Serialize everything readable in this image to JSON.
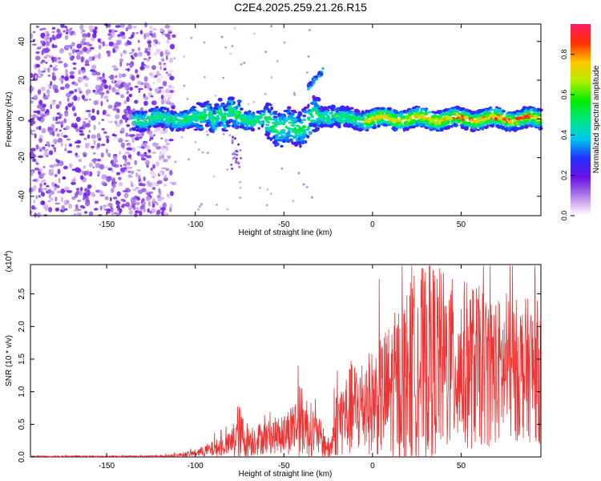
{
  "title": "C2E4.2025.259.21.26.R15",
  "chart_data": [
    {
      "type": "heatmap",
      "xlabel": "Height of straight line (km)",
      "ylabel": "Frequency (Hz)",
      "xlim": [
        -193,
        95
      ],
      "ylim": [
        -50,
        49
      ],
      "xticks": [
        -150,
        -100,
        -50,
        0,
        50
      ],
      "yticks": [
        -40,
        -20,
        0,
        20,
        40
      ],
      "colorbar": {
        "label": "Normalized spectral amplitude",
        "range": [
          0.0,
          0.95
        ],
        "ticks": [
          0.0,
          0.2,
          0.4,
          0.6,
          0.8
        ],
        "tick_labels": [
          "0.0",
          "0.2",
          "0.4",
          "0.6",
          "0.8"
        ]
      },
      "features": {
        "noise_region_x": [
          -193,
          -112
        ],
        "main_band_center_hz": 0,
        "main_band_x": [
          -135,
          95
        ],
        "secondary_blob": {
          "x": [
            -37,
            -28
          ],
          "y": [
            16,
            25
          ]
        }
      }
    },
    {
      "type": "line",
      "xlabel": "Height of straight line (km)",
      "ylabel": "SNR (10 * v/v)",
      "multiplier": "(x10",
      "multiplier_exp": "4",
      "multiplier_close": ")",
      "xlim": [
        -193,
        95
      ],
      "ylim": [
        0,
        2.95
      ],
      "xticks": [
        -150,
        -100,
        -50,
        0,
        50
      ],
      "yticks": [
        0.0,
        0.5,
        1.0,
        1.5,
        2.0,
        2.5
      ],
      "ytick_labels": [
        "0.0",
        "0.5",
        "1.0",
        "1.5",
        "2.0",
        "2.5"
      ],
      "series_color": "#ee3333",
      "envelope": {
        "x": [
          -193,
          -130,
          -112,
          -100,
          -90,
          -80,
          -76,
          -70,
          -60,
          -50,
          -40,
          -30,
          -24,
          -20,
          -10,
          0,
          10,
          25,
          35,
          45,
          55,
          65,
          75,
          85,
          95
        ],
        "mean": [
          0.01,
          0.01,
          0.02,
          0.06,
          0.12,
          0.2,
          0.35,
          0.25,
          0.3,
          0.35,
          0.55,
          0.3,
          0.1,
          0.55,
          0.75,
          0.85,
          1.0,
          1.4,
          1.5,
          1.4,
          1.4,
          1.35,
          1.3,
          1.35,
          1.3
        ],
        "amp": [
          0.01,
          0.01,
          0.02,
          0.05,
          0.12,
          0.18,
          0.5,
          0.25,
          0.25,
          0.3,
          0.55,
          0.3,
          0.15,
          0.55,
          0.75,
          0.8,
          1.1,
          1.5,
          1.5,
          1.35,
          1.3,
          1.2,
          1.1,
          1.1,
          1.1
        ]
      }
    }
  ]
}
